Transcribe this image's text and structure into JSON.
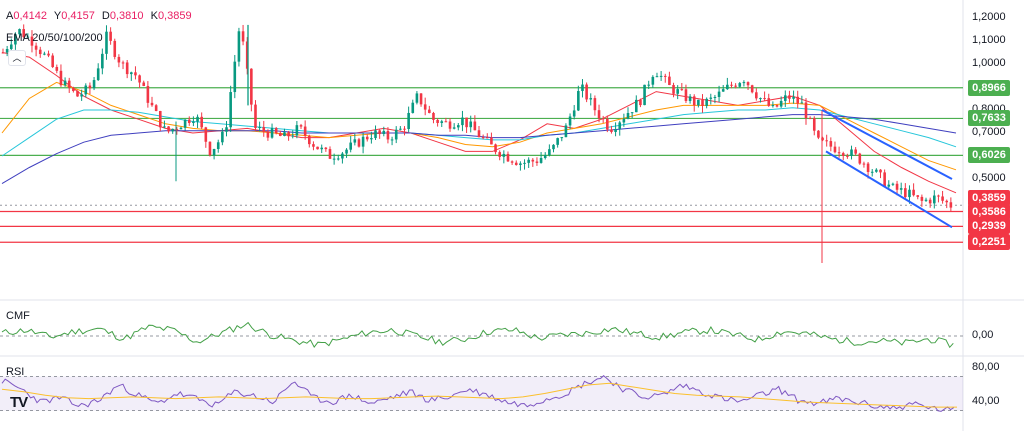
{
  "header": {
    "ohlc": [
      {
        "k": "A",
        "v": "0,4142"
      },
      {
        "k": "Y",
        "v": "0,4157"
      },
      {
        "k": "D",
        "v": "0,3810"
      },
      {
        "k": "K",
        "v": "0,3859"
      }
    ],
    "ema_label": "EMA 20/50/100/200"
  },
  "panes": {
    "cmf_label": "CMF",
    "rsi_label": "RSI"
  },
  "logo_text": "TV",
  "colors": {
    "green_line": "#4caf50",
    "red_line": "#f23645",
    "candle_up": "#089981",
    "candle_down": "#f23645",
    "wedge": "#2962ff"
  },
  "chart_data": [
    {
      "type": "candlestick",
      "yaxis_ticks": [
        "1,2000",
        "1,1000",
        "1,0000",
        "0,8000",
        "0,7000",
        "0,5000"
      ],
      "ylim": [
        0.2,
        1.25
      ],
      "horizontal_levels": [
        {
          "value": 0.8966,
          "label": "0,8966",
          "color": "green"
        },
        {
          "value": 0.7633,
          "label": "0,7633",
          "color": "green"
        },
        {
          "value": 0.6026,
          "label": "0,6026",
          "color": "green"
        },
        {
          "value": 0.3586,
          "label": "0,3586",
          "color": "red"
        },
        {
          "value": 0.2939,
          "label": "0,2939",
          "color": "red"
        },
        {
          "value": 0.2251,
          "label": "0,2251",
          "color": "red"
        }
      ],
      "last_price": {
        "value": 0.3859,
        "label": "0,3859"
      },
      "price_path": [
        1.05,
        1.15,
        1.1,
        1.02,
        0.92,
        0.86,
        0.9,
        1.12,
        1.0,
        0.95,
        0.82,
        0.7,
        0.74,
        0.78,
        0.62,
        0.7,
        1.18,
        0.72,
        0.7,
        0.68,
        0.72,
        0.65,
        0.6,
        0.62,
        0.66,
        0.7,
        0.68,
        0.72,
        0.86,
        0.76,
        0.74,
        0.76,
        0.7,
        0.64,
        0.6,
        0.57,
        0.58,
        0.62,
        0.72,
        0.9,
        0.8,
        0.72,
        0.78,
        0.84,
        0.98,
        0.9,
        0.86,
        0.82,
        0.85,
        0.9,
        0.94,
        0.86,
        0.8,
        0.86,
        0.82,
        0.66,
        0.64,
        0.62,
        0.58,
        0.52,
        0.46,
        0.44,
        0.4,
        0.42,
        0.386
      ],
      "ema": [
        {
          "name": "EMA 20",
          "color": "#f23645",
          "values": [
            1.05,
            1.03,
            0.95,
            0.86,
            0.8,
            0.76,
            0.72,
            0.7,
            0.71,
            0.72,
            0.7,
            0.68,
            0.68,
            0.7,
            0.72,
            0.7,
            0.66,
            0.62,
            0.62,
            0.67,
            0.74,
            0.72,
            0.76,
            0.82,
            0.88,
            0.86,
            0.84,
            0.82,
            0.84,
            0.86,
            0.82,
            0.72,
            0.62,
            0.55,
            0.49,
            0.44
          ]
        },
        {
          "name": "EMA 50",
          "color": "#ff9800",
          "values": [
            0.7,
            0.85,
            0.92,
            0.88,
            0.82,
            0.78,
            0.74,
            0.72,
            0.71,
            0.71,
            0.7,
            0.69,
            0.68,
            0.69,
            0.7,
            0.7,
            0.68,
            0.65,
            0.64,
            0.66,
            0.7,
            0.72,
            0.74,
            0.77,
            0.8,
            0.82,
            0.82,
            0.82,
            0.82,
            0.83,
            0.82,
            0.76,
            0.7,
            0.64,
            0.58,
            0.54
          ]
        },
        {
          "name": "EMA 100",
          "color": "#26c6da",
          "values": [
            0.6,
            0.68,
            0.76,
            0.8,
            0.8,
            0.79,
            0.77,
            0.75,
            0.74,
            0.73,
            0.72,
            0.71,
            0.7,
            0.7,
            0.7,
            0.7,
            0.69,
            0.68,
            0.67,
            0.67,
            0.69,
            0.7,
            0.72,
            0.74,
            0.76,
            0.78,
            0.79,
            0.8,
            0.8,
            0.81,
            0.8,
            0.77,
            0.74,
            0.71,
            0.68,
            0.64
          ]
        },
        {
          "name": "EMA 200",
          "color": "#3f3fbf",
          "values": [
            0.48,
            0.55,
            0.61,
            0.66,
            0.69,
            0.7,
            0.71,
            0.71,
            0.71,
            0.71,
            0.71,
            0.7,
            0.7,
            0.7,
            0.7,
            0.7,
            0.69,
            0.69,
            0.68,
            0.68,
            0.69,
            0.7,
            0.71,
            0.72,
            0.73,
            0.74,
            0.75,
            0.76,
            0.77,
            0.78,
            0.78,
            0.77,
            0.76,
            0.74,
            0.72,
            0.7
          ]
        }
      ],
      "trend_channel": {
        "upper_from": 0.8,
        "upper_to": 0.5,
        "lower_from": 0.62,
        "lower_to": 0.29
      }
    },
    {
      "type": "line",
      "name": "CMF",
      "ytick": "0,00",
      "values": [
        0.05,
        0.1,
        -0.02,
        0.08,
        0.12,
        -0.05,
        0.15,
        0.1,
        -0.1,
        0.05,
        0.2,
        0.02,
        -0.08,
        -0.15,
        -0.05,
        0.06,
        0.1,
        0.0,
        -0.1,
        -0.05,
        0.08,
        0.1,
        -0.04,
        0.02,
        0.05,
        0.12,
        0.04,
        -0.02,
        0.06,
        0.1,
        0.02,
        -0.06,
        0.08,
        0.04,
        -0.05,
        -0.1,
        -0.08,
        -0.12,
        -0.05,
        -0.15
      ]
    },
    {
      "type": "line",
      "name": "RSI",
      "yticks": [
        "80,00",
        "40,00"
      ],
      "ylim": [
        20,
        85
      ],
      "values": [
        65,
        55,
        40,
        45,
        35,
        42,
        60,
        48,
        38,
        50,
        44,
        36,
        52,
        47,
        40,
        65,
        45,
        40,
        48,
        38,
        45,
        52,
        42,
        46,
        55,
        48,
        40,
        36,
        44,
        50,
        62,
        70,
        55,
        46,
        48,
        60,
        52,
        45,
        40,
        48,
        55,
        42,
        38,
        44,
        40,
        35,
        33,
        38,
        32,
        30
      ],
      "signal": [
        55,
        52,
        48,
        45,
        44,
        45,
        46,
        45,
        44,
        45,
        46,
        45,
        44,
        45,
        46,
        45,
        44,
        44,
        45,
        46,
        47,
        46,
        45,
        44,
        46,
        50,
        55,
        60,
        62,
        58,
        54,
        50,
        48,
        47,
        46,
        44,
        42,
        40,
        39,
        38,
        37,
        36,
        35,
        34,
        34
      ]
    }
  ]
}
